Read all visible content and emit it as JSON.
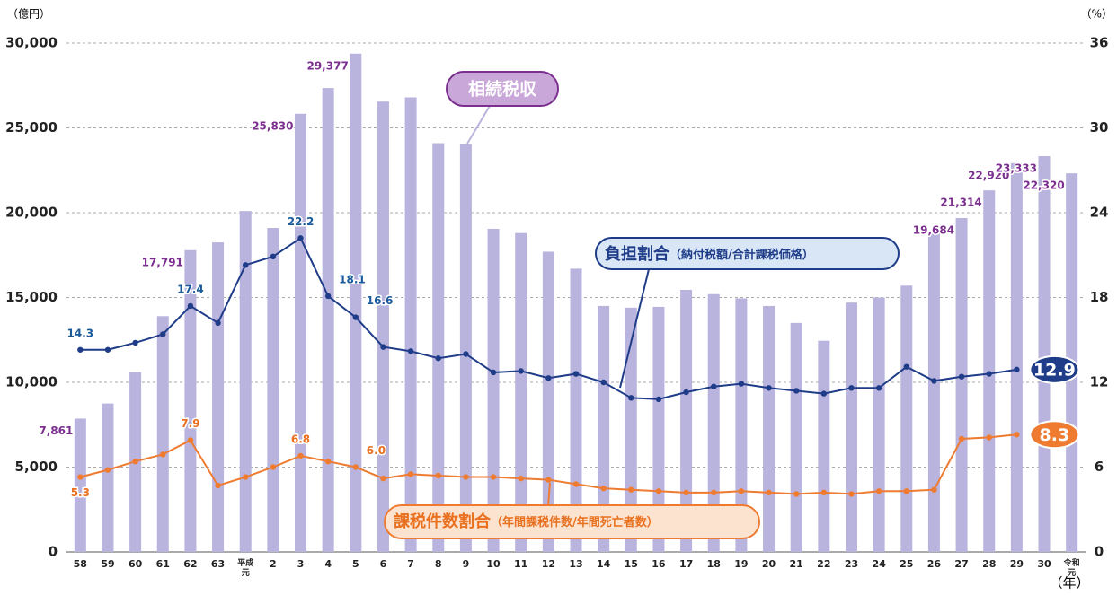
{
  "chart_data": {
    "type": "bar_line",
    "y_label": "（億円）",
    "y2_label": "（%）",
    "x_label": "（年）",
    "categories": [
      "58",
      "59",
      "60",
      "61",
      "62",
      "63",
      "平成元",
      "2",
      "3",
      "4",
      "5",
      "6",
      "7",
      "8",
      "9",
      "10",
      "11",
      "12",
      "13",
      "14",
      "15",
      "16",
      "17",
      "18",
      "19",
      "20",
      "21",
      "22",
      "23",
      "24",
      "25",
      "26",
      "27",
      "28",
      "29",
      "30",
      "令和元"
    ],
    "ylim": [
      0,
      30000
    ],
    "yticks": [
      0,
      {
        "value": 5000,
        "label": "5,000"
      },
      {
        "value": 10000,
        "label": "10,000"
      },
      {
        "value": 15000,
        "label": "15,000"
      },
      {
        "value": 20000,
        "label": "20,000"
      },
      {
        "value": 25000,
        "label": "25,000"
      },
      {
        "value": 30000,
        "label": "30,000"
      }
    ],
    "y2lim": [
      0,
      36
    ],
    "y2ticks": [
      0,
      6,
      12,
      18,
      24,
      30,
      36
    ],
    "grid": true,
    "series": [
      {
        "name": "相続税収",
        "kind": "bar",
        "color": "#b9b4dd",
        "label_color": "#7b2f8e",
        "values": [
          7861,
          8750,
          10600,
          13900,
          17791,
          18250,
          20100,
          19100,
          25830,
          27350,
          29377,
          26550,
          26800,
          24100,
          24050,
          19050,
          18800,
          17700,
          16700,
          14500,
          14400,
          14450,
          15450,
          15200,
          14950,
          14500,
          13500,
          12450,
          14700,
          15000,
          15700,
          18800,
          19684,
          21314,
          22920,
          23333,
          22320
        ],
        "value_labels": [
          "7,861",
          null,
          null,
          null,
          "17,791",
          null,
          null,
          null,
          "25,830",
          null,
          "29,377",
          null,
          null,
          null,
          null,
          null,
          null,
          null,
          null,
          null,
          null,
          null,
          null,
          null,
          null,
          null,
          null,
          null,
          null,
          null,
          null,
          null,
          "19,684",
          "21,314",
          "22,920",
          "23,333",
          "22,320"
        ]
      },
      {
        "name": "負担割合",
        "name_note": "（納付税額/合計課税価格）",
        "kind": "line",
        "axis": "y2",
        "color": "#1f3c88",
        "label_color": "#1a5a9a",
        "values": [
          14.3,
          14.3,
          14.8,
          15.4,
          17.4,
          16.2,
          20.3,
          20.9,
          22.2,
          18.1,
          16.6,
          14.5,
          14.2,
          13.7,
          14.0,
          12.7,
          12.8,
          12.3,
          12.6,
          12.0,
          10.9,
          10.8,
          11.3,
          11.7,
          11.9,
          11.6,
          11.4,
          11.2,
          11.6,
          11.6,
          13.1,
          12.1,
          12.4,
          12.6,
          12.9,
          null,
          null
        ],
        "value_labels": [
          "14.3",
          null,
          null,
          null,
          "17.4",
          null,
          null,
          null,
          "22.2",
          "18.1",
          "16.6",
          null,
          null,
          null,
          null,
          null,
          null,
          null,
          null,
          null,
          null,
          null,
          null,
          null,
          null,
          null,
          null,
          null,
          null,
          null,
          null,
          null,
          null,
          null,
          "12.9",
          null,
          null
        ]
      },
      {
        "name": "課税件数割合",
        "name_note": "（年間課税件数/年間死亡者数）",
        "kind": "line",
        "axis": "y2",
        "color": "#ee7b30",
        "label_color": "#e8701f",
        "values": [
          5.3,
          5.8,
          6.4,
          6.9,
          7.9,
          4.7,
          5.3,
          6.0,
          6.8,
          6.4,
          6.0,
          5.2,
          5.5,
          5.4,
          5.3,
          5.3,
          5.2,
          5.1,
          4.8,
          4.5,
          4.4,
          4.3,
          4.2,
          4.2,
          4.3,
          4.2,
          4.1,
          4.2,
          4.1,
          4.3,
          4.3,
          4.4,
          8.0,
          8.1,
          8.3,
          null,
          null
        ],
        "value_labels": [
          "5.3",
          null,
          null,
          null,
          "7.9",
          null,
          null,
          null,
          "6.8",
          null,
          "6.0",
          null,
          null,
          null,
          null,
          null,
          null,
          null,
          null,
          null,
          null,
          null,
          null,
          null,
          null,
          null,
          null,
          null,
          null,
          null,
          null,
          null,
          null,
          null,
          "8.3",
          null,
          null
        ]
      }
    ]
  }
}
